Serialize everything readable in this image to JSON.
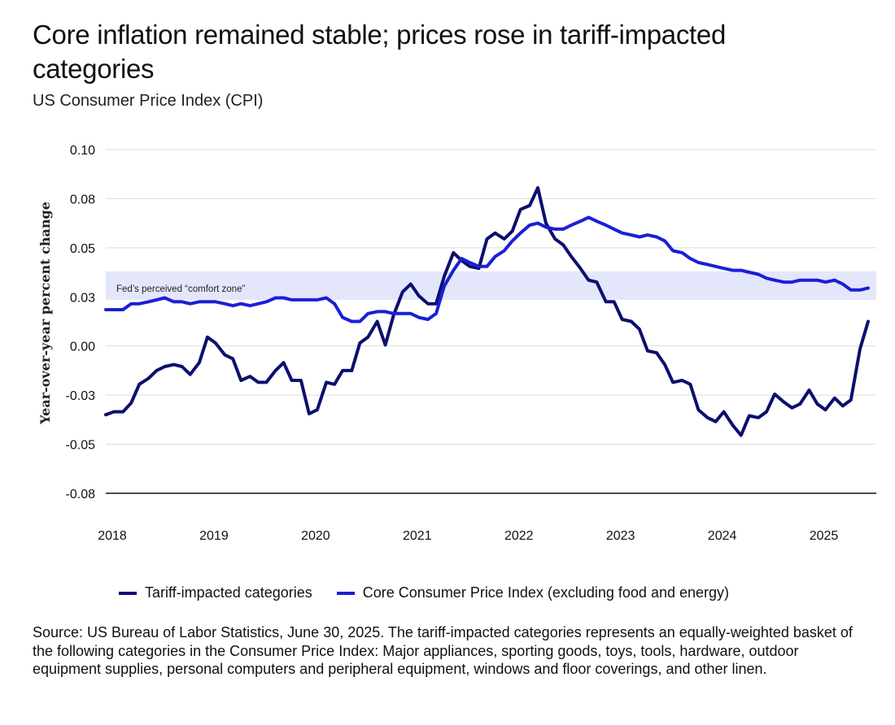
{
  "title": "Core inflation remained stable; prices rose in tariff-impacted categories",
  "subtitle": "US Consumer Price Index (CPI)",
  "source": "Source: US Bureau of Labor Statistics, June 30, 2025. The tariff-impacted categories represents an equally-weighted basket of the following categories in the Consumer Price Index: Major appliances, sporting goods, toys, tools, hardware, outdoor equipment supplies, personal computers and peripheral equipment, windows and floor coverings, and other linen.",
  "colors": {
    "tariff": "#0b0f6e",
    "core": "#1a1fd6",
    "band": "#e4e6fb",
    "grid": "#dddddd"
  },
  "chart_data": {
    "type": "line",
    "ylabel": "Year-over-year percent change",
    "ylim": [
      -0.08,
      0.1
    ],
    "xlim": [
      2018.0,
      2025.58
    ],
    "y_ticks": [
      {
        "value": 0.1,
        "label": "0.10"
      },
      {
        "value": 0.075,
        "label": "0.08"
      },
      {
        "value": 0.05,
        "label": "0.05"
      },
      {
        "value": 0.025,
        "label": "0.03"
      },
      {
        "value": 0.0,
        "label": "0.00"
      },
      {
        "value": -0.025,
        "label": "-0.03"
      },
      {
        "value": -0.05,
        "label": "-0.05"
      },
      {
        "value": -0.075,
        "label": "-0.08"
      }
    ],
    "x_ticks": [
      2018,
      2019,
      2020,
      2021,
      2022,
      2023,
      2024,
      2025
    ],
    "band": {
      "from": 0.0235,
      "to": 0.038,
      "label": "Fed’s perceived “comfort zone”"
    },
    "grid": true,
    "legend_position": "bottom",
    "series": [
      {
        "name": "Tariff-impacted categories",
        "color": "#0b0f6e",
        "x": [
          2018.0,
          2018.08,
          2018.17,
          2018.25,
          2018.33,
          2018.42,
          2018.5,
          2018.58,
          2018.67,
          2018.75,
          2018.83,
          2018.92,
          2019.0,
          2019.08,
          2019.17,
          2019.25,
          2019.33,
          2019.42,
          2019.5,
          2019.58,
          2019.67,
          2019.75,
          2019.83,
          2019.92,
          2020.0,
          2020.08,
          2020.17,
          2020.25,
          2020.33,
          2020.42,
          2020.5,
          2020.58,
          2020.67,
          2020.75,
          2020.83,
          2020.92,
          2021.0,
          2021.08,
          2021.17,
          2021.25,
          2021.33,
          2021.42,
          2021.5,
          2021.58,
          2021.67,
          2021.75,
          2021.83,
          2021.92,
          2022.0,
          2022.08,
          2022.17,
          2022.25,
          2022.33,
          2022.42,
          2022.5,
          2022.58,
          2022.67,
          2022.75,
          2022.83,
          2022.92,
          2023.0,
          2023.08,
          2023.17,
          2023.25,
          2023.33,
          2023.42,
          2023.5,
          2023.58,
          2023.67,
          2023.75,
          2023.83,
          2023.92,
          2024.0,
          2024.08,
          2024.17,
          2024.25,
          2024.33,
          2024.42,
          2024.5,
          2024.58,
          2024.67,
          2024.75,
          2024.83,
          2024.92,
          2025.0,
          2025.08,
          2025.17,
          2025.25,
          2025.33,
          2025.42,
          2025.5
        ],
        "y": [
          -0.035,
          -0.0335,
          -0.0335,
          -0.029,
          -0.0195,
          -0.0165,
          -0.0125,
          -0.0105,
          -0.0095,
          -0.0105,
          -0.0145,
          -0.0085,
          0.0045,
          0.0015,
          -0.0045,
          -0.0065,
          -0.0175,
          -0.0155,
          -0.0185,
          -0.0185,
          -0.0125,
          -0.0085,
          -0.0175,
          -0.0175,
          -0.0345,
          -0.0325,
          -0.0185,
          -0.0195,
          -0.0125,
          -0.0125,
          0.0015,
          0.0045,
          0.0125,
          0.0005,
          0.0155,
          0.0275,
          0.0315,
          0.0255,
          0.0215,
          0.0215,
          0.0355,
          0.0475,
          0.0435,
          0.0405,
          0.0395,
          0.0545,
          0.0575,
          0.0545,
          0.0585,
          0.0695,
          0.0715,
          0.0805,
          0.0625,
          0.0545,
          0.0515,
          0.0455,
          0.0395,
          0.0335,
          0.0325,
          0.0225,
          0.0225,
          0.0135,
          0.0125,
          0.0085,
          -0.0025,
          -0.0035,
          -0.0095,
          -0.0185,
          -0.0175,
          -0.0195,
          -0.0325,
          -0.0365,
          -0.0385,
          -0.0335,
          -0.0405,
          -0.0455,
          -0.0355,
          -0.0365,
          -0.0335,
          -0.0245,
          -0.0285,
          -0.0315,
          -0.0295,
          -0.0225,
          -0.0295,
          -0.0325,
          -0.0265,
          -0.0305,
          -0.0275,
          -0.0015,
          0.0125
        ]
      },
      {
        "name": "Core Consumer Price Index (excluding food and energy)",
        "color": "#1a1fd6",
        "x": [
          2018.0,
          2018.08,
          2018.17,
          2018.25,
          2018.33,
          2018.42,
          2018.5,
          2018.58,
          2018.67,
          2018.75,
          2018.83,
          2018.92,
          2019.0,
          2019.08,
          2019.17,
          2019.25,
          2019.33,
          2019.42,
          2019.5,
          2019.58,
          2019.67,
          2019.75,
          2019.83,
          2019.92,
          2020.0,
          2020.08,
          2020.17,
          2020.25,
          2020.33,
          2020.42,
          2020.5,
          2020.58,
          2020.67,
          2020.75,
          2020.83,
          2020.92,
          2021.0,
          2021.08,
          2021.17,
          2021.25,
          2021.33,
          2021.42,
          2021.5,
          2021.58,
          2021.67,
          2021.75,
          2021.83,
          2021.92,
          2022.0,
          2022.08,
          2022.17,
          2022.25,
          2022.33,
          2022.42,
          2022.5,
          2022.58,
          2022.67,
          2022.75,
          2022.83,
          2022.92,
          2023.0,
          2023.08,
          2023.17,
          2023.25,
          2023.33,
          2023.42,
          2023.5,
          2023.58,
          2023.67,
          2023.75,
          2023.83,
          2023.92,
          2024.0,
          2024.08,
          2024.17,
          2024.25,
          2024.33,
          2024.42,
          2024.5,
          2024.58,
          2024.67,
          2024.75,
          2024.83,
          2024.92,
          2025.0,
          2025.08,
          2025.17,
          2025.25,
          2025.33,
          2025.42,
          2025.5
        ],
        "y": [
          0.0185,
          0.0185,
          0.0185,
          0.0215,
          0.0215,
          0.0225,
          0.0235,
          0.0245,
          0.0225,
          0.0225,
          0.0215,
          0.0225,
          0.0225,
          0.0225,
          0.0215,
          0.0205,
          0.0215,
          0.0205,
          0.0215,
          0.0225,
          0.0245,
          0.0245,
          0.0235,
          0.0235,
          0.0235,
          0.0235,
          0.0245,
          0.0215,
          0.0145,
          0.0125,
          0.0125,
          0.0165,
          0.0175,
          0.0175,
          0.0165,
          0.0165,
          0.0165,
          0.0145,
          0.0135,
          0.0165,
          0.0305,
          0.0385,
          0.0445,
          0.0425,
          0.0405,
          0.0405,
          0.0455,
          0.0485,
          0.0535,
          0.0575,
          0.0615,
          0.0625,
          0.0605,
          0.0595,
          0.0595,
          0.0615,
          0.0635,
          0.0655,
          0.0635,
          0.0615,
          0.0595,
          0.0575,
          0.0565,
          0.0555,
          0.0565,
          0.0555,
          0.0535,
          0.0485,
          0.0475,
          0.0445,
          0.0425,
          0.0415,
          0.0405,
          0.0395,
          0.0385,
          0.0385,
          0.0375,
          0.0365,
          0.0345,
          0.0335,
          0.0325,
          0.0325,
          0.0335,
          0.0335,
          0.0335,
          0.0325,
          0.0335,
          0.0315,
          0.0285,
          0.0285,
          0.0295
        ]
      }
    ]
  }
}
